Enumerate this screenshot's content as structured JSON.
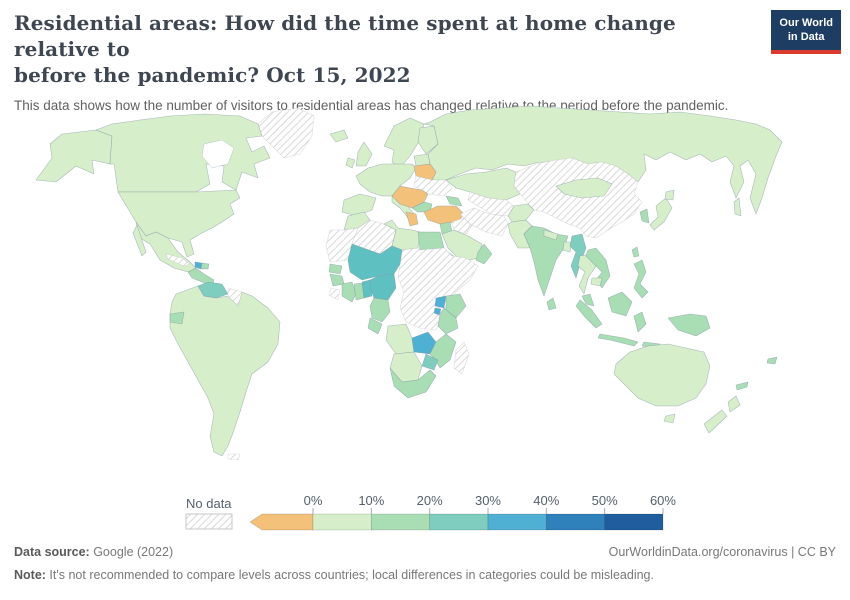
{
  "header": {
    "title_lines": [
      "Residential areas: How did the time spent at home change relative to",
      "before the pandemic? Oct 15, 2022"
    ],
    "subtitle": "This data shows how the number of visitors to residential areas has changed relative to the period before the pandemic."
  },
  "logo": {
    "line1": "Our World",
    "line2": "in Data",
    "bg": "#1d3d63",
    "accent": "#dc3a2f"
  },
  "legend": {
    "no_data_label": "No data",
    "ticks": [
      "0%",
      "10%",
      "20%",
      "30%",
      "40%",
      "50%",
      "60%"
    ],
    "segment_keys": [
      "p0_10",
      "p10_20",
      "p20_30",
      "p30_40",
      "p40_50",
      "p50_60"
    ],
    "arrow_key": "below_zero"
  },
  "palette": {
    "below_zero": "#f4c17b",
    "p0_10": "#d6eec9",
    "p10_20": "#a9ddb3",
    "p20_30": "#7ecdbf",
    "teal": "#5fc0c1",
    "p30_40": "#4fb0d4",
    "p40_50": "#2e81ba",
    "p50_60": "#1f5d9e",
    "hatch_line": "#d9d9d9",
    "hatch_border": "#c7c7c7"
  },
  "map": {
    "regions": {
      "greenland": "no_data",
      "alaska": "p0_10",
      "canada": "p0_10",
      "usa": "p0_10",
      "mexico": "p0_10",
      "central_america": "p10_20",
      "cuba": "no_data",
      "haiti": "p30_40",
      "dominican": "p10_20",
      "venezuela": "p20_30",
      "guyana": "no_data",
      "ecuador": "p10_20",
      "south_america": "p0_10",
      "falklands": "no_data",
      "iceland": "p0_10",
      "uk": "p0_10",
      "ireland": "p0_10",
      "scandinavia": "p0_10",
      "finland": "p0_10",
      "baltics": "p0_10",
      "europe_west": "p0_10",
      "iberia": "p0_10",
      "italy": "p0_10",
      "belarus": "below_zero",
      "ukraine": "no_data",
      "balkans": "below_zero",
      "bulgaria": "p10_20",
      "greece": "below_zero",
      "turkey": "below_zero",
      "russia": "p0_10",
      "sakhalin": "p0_10",
      "kazakhstan": "p0_10",
      "caucasus": "p10_20",
      "central_asia": "no_data",
      "iran": "no_data",
      "iraq_syria": "no_data",
      "levant": "p10_20",
      "saudi": "p0_10",
      "yemen": "p10_20",
      "oman": "p10_20",
      "afghanistan": "p0_10",
      "pakistan": "p0_10",
      "india": "p10_20",
      "nepal": "p0_10",
      "bangladesh": "p0_10",
      "sri_lanka": "p10_20",
      "china": "no_data",
      "mongolia": "p0_10",
      "korea": "p10_20",
      "japan": "p0_10",
      "taiwan": "p10_20",
      "myanmar": "p20_30",
      "thailand": "p0_10",
      "laos_vietnam": "p10_20",
      "cambodia": "p0_10",
      "malay_peninsula": "p10_20",
      "borneo": "p10_20",
      "sumatra": "p10_20",
      "java": "p10_20",
      "sulawesi": "p10_20",
      "lesser_sunda": "p10_20",
      "philippines": "p10_20",
      "png": "p10_20",
      "australia": "p0_10",
      "tasmania": "p0_10",
      "new_zealand": "p0_10",
      "fiji": "p10_20",
      "new_caledonia": "p10_20",
      "morocco": "p0_10",
      "wsahara_mauritania": "no_data",
      "algeria": "no_data",
      "libya": "p0_10",
      "egypt": "p10_20",
      "sahel": "teal",
      "nigeria": "teal",
      "togo_benin": "teal",
      "senegal": "p10_20",
      "guinea": "p10_20",
      "sierra_leone": "no_data",
      "ivory_coast": "p10_20",
      "ghana": "p10_20",
      "cameroon": "p10_20",
      "gabon": "p10_20",
      "chad_sudan_horn": "no_data",
      "uganda": "p30_40",
      "rwanda": "p30_40",
      "kenya": "p10_20",
      "tanzania": "p10_20",
      "angola": "p0_10",
      "zambia": "p30_40",
      "malawi_mozambique": "p10_20",
      "zimbabwe": "p20_30",
      "namibia_botswana": "p0_10",
      "south_africa": "p10_20",
      "madagascar": "no_data"
    }
  },
  "footer": {
    "source_label": "Data source:",
    "source_value": " Google (2022)",
    "link_text": "OurWorldinData.org/coronavirus | CC BY",
    "note_label": "Note:",
    "note_value": " It's not recommended to compare levels across countries; local differences in categories could be misleading."
  },
  "chart_data": {
    "type": "heatmap",
    "subtype": "choropleth_world_map",
    "title": "Residential areas: How did the time spent at home change relative to before the pandemic? Oct 15, 2022",
    "subtitle": "This data shows how the number of visitors to residential areas has changed relative to the period before the pandemic.",
    "unit": "%",
    "scale_ticks": [
      0,
      10,
      20,
      30,
      40,
      50,
      60
    ],
    "scale_note": "left arrow on color bar = values below 0%",
    "legend_position": "bottom",
    "bucket_colors": {
      "below_0": "#f4c17b",
      "0_10": "#d6eec9",
      "10_20": "#a9ddb3",
      "20_30": "#7ecdbf",
      "30_40": "#4fb0d4",
      "40_50": "#2e81ba",
      "50_60": "#1f5d9e",
      "no_data": "hatched"
    },
    "regions_by_bucket": {
      "below_0": [
        "Belarus",
        "Hungary",
        "Croatia",
        "Serbia",
        "Romania",
        "Greece",
        "Turkey"
      ],
      "0_10": [
        "Canada",
        "United States",
        "Mexico",
        "Brazil",
        "Argentina",
        "Chile",
        "Peru",
        "Colombia",
        "Bolivia",
        "Paraguay",
        "Uruguay",
        "Iceland",
        "United Kingdom",
        "Ireland",
        "France",
        "Spain",
        "Portugal",
        "Germany",
        "Poland",
        "Norway",
        "Sweden",
        "Finland",
        "Italy",
        "Baltics",
        "Russia",
        "Kazakhstan",
        "Mongolia",
        "Japan",
        "Thailand",
        "Cambodia",
        "Afghanistan",
        "Pakistan",
        "Nepal",
        "Bangladesh",
        "Saudi Arabia",
        "Morocco",
        "Libya",
        "Angola",
        "Namibia",
        "Botswana",
        "Australia",
        "New Zealand"
      ],
      "10_20": [
        "Guatemala",
        "Dominican Republic",
        "Ecuador",
        "India",
        "Sri Lanka",
        "Vietnam",
        "Laos",
        "Philippines",
        "Malaysia",
        "Indonesia",
        "Papua New Guinea",
        "South Korea",
        "Taiwan",
        "Azerbaijan",
        "Bulgaria",
        "Egypt",
        "Senegal",
        "Guinea",
        "Ivory Coast",
        "Ghana",
        "Cameroon",
        "Gabon",
        "Kenya",
        "Tanzania",
        "Malawi",
        "Mozambique",
        "South Africa",
        "Yemen",
        "Oman",
        "Jordan",
        "Israel",
        "Fiji"
      ],
      "20_30": [
        "Venezuela",
        "Myanmar",
        "Zimbabwe"
      ],
      "30_40": [
        "Mali",
        "Niger",
        "Burkina Faso",
        "Nigeria",
        "Togo",
        "Benin",
        "Uganda",
        "Rwanda",
        "Zambia",
        "Haiti"
      ],
      "no_data": [
        "Greenland",
        "Cuba",
        "Guyana",
        "Suriname",
        "Ukraine",
        "China",
        "Iran",
        "Iraq",
        "Syria",
        "Turkmenistan",
        "Uzbekistan",
        "Algeria",
        "Mauritania",
        "Western Sahara",
        "Chad",
        "Sudan",
        "South Sudan",
        "Ethiopia",
        "Somalia",
        "DR Congo",
        "Central African Republic",
        "Sierra Leone",
        "Liberia",
        "Madagascar"
      ]
    }
  }
}
